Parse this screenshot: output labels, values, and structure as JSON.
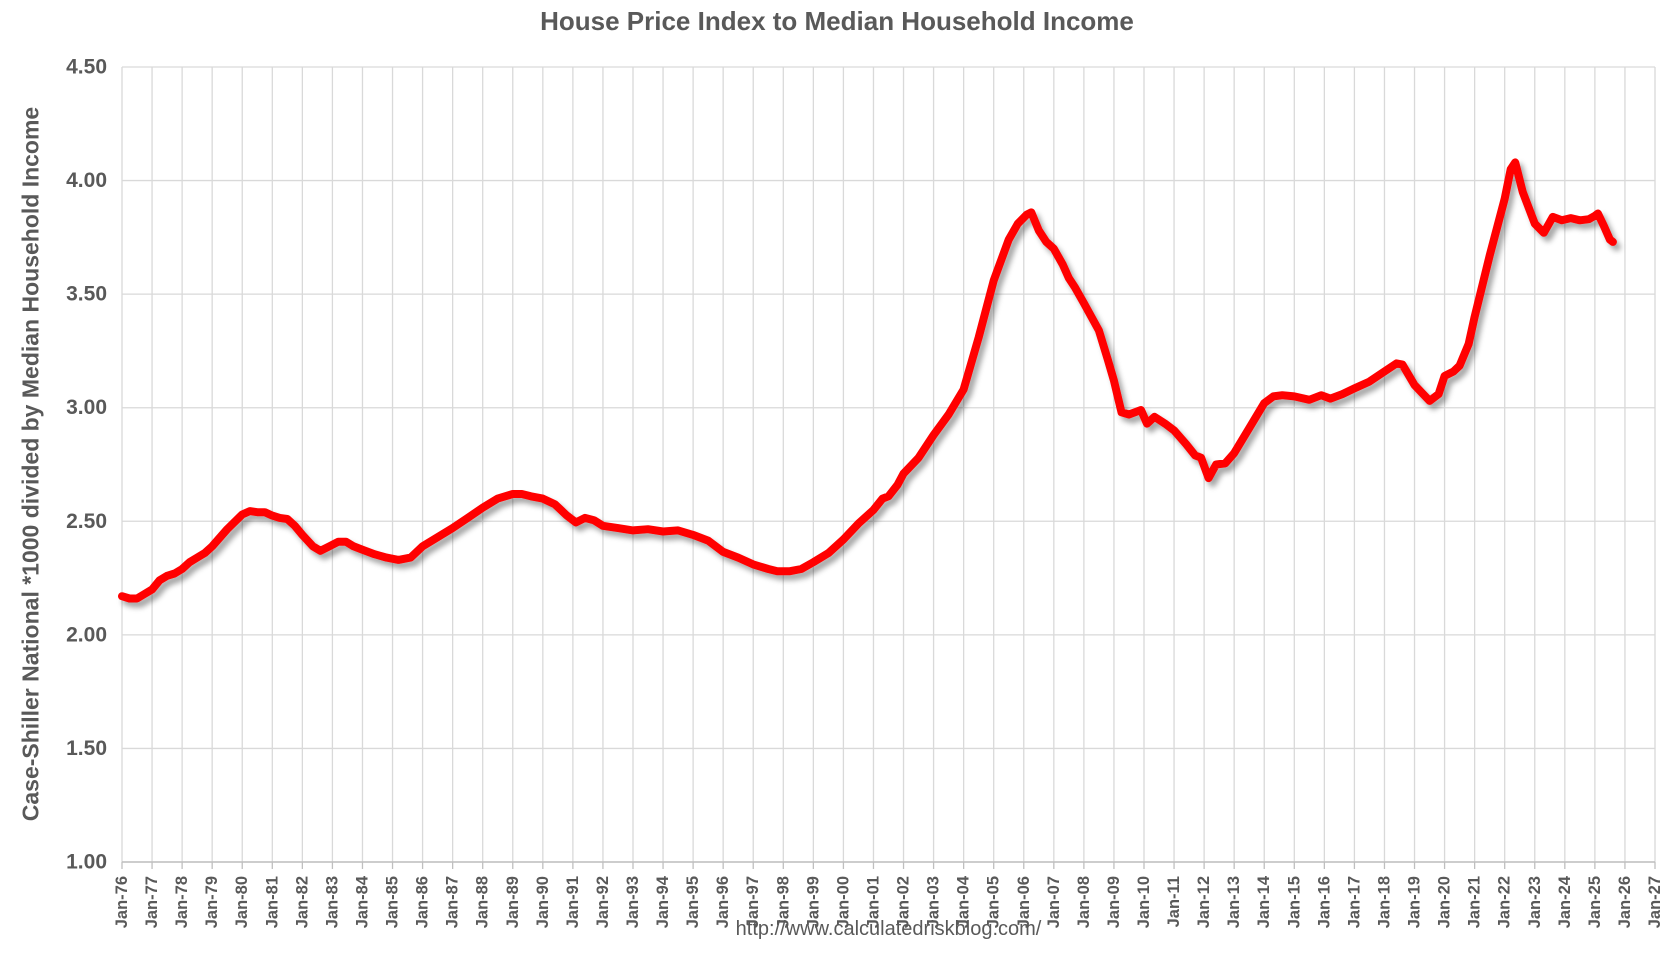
{
  "title": "House Price Index to Median Household Income",
  "footer": {
    "url_text": "http://www.calculatedriskblog.com/"
  },
  "colors": {
    "line": "#FF0000",
    "grid": "#D9D9D9",
    "axis": "#BFBFBF",
    "text": "#595959",
    "background": "#FFFFFF"
  },
  "chart_data": {
    "type": "line",
    "title": "House Price Index to Median Household Income",
    "xlabel": "",
    "ylabel": "Case-Shiller National *1000 divided by Median Household Income",
    "grid": true,
    "legend": "none",
    "ylim": [
      1.0,
      4.5
    ],
    "y_tick_labels": [
      "1.00",
      "1.50",
      "2.00",
      "2.50",
      "3.00",
      "3.50",
      "4.00",
      "4.50"
    ],
    "y_tick_values": [
      1.0,
      1.5,
      2.0,
      2.5,
      3.0,
      3.5,
      4.0,
      4.5
    ],
    "x_tick_labels": [
      "Jan-76",
      "Jan-77",
      "Jan-78",
      "Jan-79",
      "Jan-80",
      "Jan-81",
      "Jan-82",
      "Jan-83",
      "Jan-84",
      "Jan-85",
      "Jan-86",
      "Jan-87",
      "Jan-88",
      "Jan-89",
      "Jan-90",
      "Jan-91",
      "Jan-92",
      "Jan-93",
      "Jan-94",
      "Jan-95",
      "Jan-96",
      "Jan-97",
      "Jan-98",
      "Jan-99",
      "Jan-00",
      "Jan-01",
      "Jan-02",
      "Jan-03",
      "Jan-04",
      "Jan-05",
      "Jan-06",
      "Jan-07",
      "Jan-08",
      "Jan-09",
      "Jan-10",
      "Jan-11",
      "Jan-12",
      "Jan-13",
      "Jan-14",
      "Jan-15",
      "Jan-16",
      "Jan-17",
      "Jan-18",
      "Jan-19",
      "Jan-20",
      "Jan-21",
      "Jan-22",
      "Jan-23",
      "Jan-24",
      "Jan-25",
      "Jan-26",
      "Jan-27"
    ],
    "x_start_year": 1976,
    "x_end_year": 2027,
    "series": [
      {
        "label": "Case-Shiller National *1000 divided by Median Household Income",
        "color": "#FF0000",
        "points": [
          [
            1976.0,
            2.17
          ],
          [
            1976.25,
            2.16
          ],
          [
            1976.5,
            2.16
          ],
          [
            1976.75,
            2.18
          ],
          [
            1977.0,
            2.2
          ],
          [
            1977.25,
            2.24
          ],
          [
            1977.5,
            2.26
          ],
          [
            1977.75,
            2.27
          ],
          [
            1978.0,
            2.29
          ],
          [
            1978.25,
            2.32
          ],
          [
            1978.5,
            2.34
          ],
          [
            1978.75,
            2.36
          ],
          [
            1979.0,
            2.39
          ],
          [
            1979.5,
            2.465
          ],
          [
            1980.0,
            2.53
          ],
          [
            1980.25,
            2.545
          ],
          [
            1980.5,
            2.54
          ],
          [
            1980.75,
            2.54
          ],
          [
            1981.0,
            2.525
          ],
          [
            1981.25,
            2.515
          ],
          [
            1981.5,
            2.51
          ],
          [
            1981.75,
            2.48
          ],
          [
            1982.0,
            2.44
          ],
          [
            1982.35,
            2.39
          ],
          [
            1982.6,
            2.37
          ],
          [
            1982.9,
            2.39
          ],
          [
            1983.2,
            2.41
          ],
          [
            1983.45,
            2.41
          ],
          [
            1983.7,
            2.39
          ],
          [
            1984.0,
            2.375
          ],
          [
            1984.4,
            2.355
          ],
          [
            1984.8,
            2.34
          ],
          [
            1985.2,
            2.33
          ],
          [
            1985.6,
            2.34
          ],
          [
            1986.0,
            2.39
          ],
          [
            1986.5,
            2.43
          ],
          [
            1987.0,
            2.47
          ],
          [
            1987.5,
            2.515
          ],
          [
            1988.0,
            2.56
          ],
          [
            1988.5,
            2.6
          ],
          [
            1989.0,
            2.62
          ],
          [
            1989.3,
            2.62
          ],
          [
            1989.6,
            2.61
          ],
          [
            1990.0,
            2.6
          ],
          [
            1990.4,
            2.575
          ],
          [
            1990.8,
            2.525
          ],
          [
            1991.1,
            2.495
          ],
          [
            1991.4,
            2.515
          ],
          [
            1991.7,
            2.505
          ],
          [
            1992.0,
            2.48
          ],
          [
            1992.5,
            2.47
          ],
          [
            1993.0,
            2.46
          ],
          [
            1993.5,
            2.465
          ],
          [
            1994.0,
            2.455
          ],
          [
            1994.5,
            2.46
          ],
          [
            1995.0,
            2.44
          ],
          [
            1995.5,
            2.415
          ],
          [
            1996.0,
            2.365
          ],
          [
            1996.5,
            2.34
          ],
          [
            1997.0,
            2.31
          ],
          [
            1997.5,
            2.29
          ],
          [
            1997.8,
            2.28
          ],
          [
            1998.2,
            2.28
          ],
          [
            1998.6,
            2.29
          ],
          [
            1999.0,
            2.32
          ],
          [
            1999.5,
            2.36
          ],
          [
            2000.0,
            2.42
          ],
          [
            2000.5,
            2.49
          ],
          [
            2001.0,
            2.55
          ],
          [
            2001.3,
            2.6
          ],
          [
            2001.5,
            2.61
          ],
          [
            2001.8,
            2.66
          ],
          [
            2002.0,
            2.71
          ],
          [
            2002.5,
            2.78
          ],
          [
            2003.0,
            2.88
          ],
          [
            2003.5,
            2.97
          ],
          [
            2004.0,
            3.08
          ],
          [
            2004.5,
            3.31
          ],
          [
            2005.0,
            3.56
          ],
          [
            2005.5,
            3.74
          ],
          [
            2005.8,
            3.81
          ],
          [
            2006.1,
            3.85
          ],
          [
            2006.25,
            3.86
          ],
          [
            2006.5,
            3.78
          ],
          [
            2006.75,
            3.73
          ],
          [
            2007.0,
            3.7
          ],
          [
            2007.3,
            3.63
          ],
          [
            2007.5,
            3.57
          ],
          [
            2007.7,
            3.53
          ],
          [
            2008.0,
            3.46
          ],
          [
            2008.5,
            3.34
          ],
          [
            2008.8,
            3.21
          ],
          [
            2009.0,
            3.12
          ],
          [
            2009.25,
            2.98
          ],
          [
            2009.5,
            2.97
          ],
          [
            2009.9,
            2.99
          ],
          [
            2010.1,
            2.93
          ],
          [
            2010.35,
            2.96
          ],
          [
            2010.7,
            2.93
          ],
          [
            2011.0,
            2.9
          ],
          [
            2011.4,
            2.84
          ],
          [
            2011.7,
            2.79
          ],
          [
            2011.9,
            2.78
          ],
          [
            2012.15,
            2.69
          ],
          [
            2012.4,
            2.75
          ],
          [
            2012.7,
            2.755
          ],
          [
            2013.0,
            2.8
          ],
          [
            2013.5,
            2.91
          ],
          [
            2014.0,
            3.02
          ],
          [
            2014.3,
            3.05
          ],
          [
            2014.6,
            3.055
          ],
          [
            2015.0,
            3.05
          ],
          [
            2015.5,
            3.035
          ],
          [
            2015.9,
            3.055
          ],
          [
            2016.2,
            3.04
          ],
          [
            2016.6,
            3.06
          ],
          [
            2017.0,
            3.085
          ],
          [
            2017.5,
            3.115
          ],
          [
            2018.0,
            3.16
          ],
          [
            2018.4,
            3.195
          ],
          [
            2018.6,
            3.19
          ],
          [
            2019.0,
            3.1
          ],
          [
            2019.5,
            3.03
          ],
          [
            2019.8,
            3.06
          ],
          [
            2020.0,
            3.14
          ],
          [
            2020.3,
            3.16
          ],
          [
            2020.5,
            3.185
          ],
          [
            2020.8,
            3.28
          ],
          [
            2021.0,
            3.4
          ],
          [
            2021.5,
            3.67
          ],
          [
            2022.0,
            3.92
          ],
          [
            2022.2,
            4.05
          ],
          [
            2022.35,
            4.08
          ],
          [
            2022.6,
            3.95
          ],
          [
            2023.0,
            3.81
          ],
          [
            2023.3,
            3.77
          ],
          [
            2023.6,
            3.84
          ],
          [
            2023.9,
            3.825
          ],
          [
            2024.2,
            3.835
          ],
          [
            2024.5,
            3.825
          ],
          [
            2024.8,
            3.83
          ],
          [
            2025.0,
            3.845
          ],
          [
            2025.1,
            3.855
          ],
          [
            2025.3,
            3.8
          ],
          [
            2025.5,
            3.74
          ],
          [
            2025.6,
            3.73
          ]
        ]
      }
    ]
  }
}
